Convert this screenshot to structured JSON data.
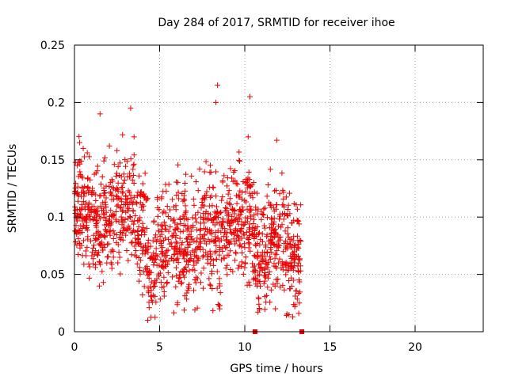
{
  "chart_data": {
    "type": "scatter",
    "title": "Day 284 of 2017, SRMTID for receiver ihoe",
    "xlabel": "GPS time / hours",
    "ylabel": "SRMTID / TECUs",
    "xlim": [
      0,
      24
    ],
    "ylim": [
      0,
      0.25
    ],
    "xticks": [
      0,
      5,
      10,
      15,
      20
    ],
    "yticks": [
      0,
      0.05,
      0.1,
      0.15,
      0.2,
      0.25
    ],
    "xtick_labels": [
      "0",
      "5",
      "10",
      "15",
      "20"
    ],
    "ytick_labels": [
      "0",
      "0.05",
      "0.1",
      "0.15",
      "0.2",
      "0.25"
    ],
    "grid": true,
    "marker": "+",
    "color": "#ee0000",
    "series": [
      {
        "name": "SRMTID",
        "envelope": {
          "x_range": [
            0,
            13.3
          ],
          "description": "dense cloud of points mostly between 0.03 and 0.16 TECU"
        },
        "notable_points": [
          {
            "x": 0.3,
            "y": 0.165
          },
          {
            "x": 1.5,
            "y": 0.19
          },
          {
            "x": 3.3,
            "y": 0.195
          },
          {
            "x": 3.5,
            "y": 0.17
          },
          {
            "x": 4.3,
            "y": 0.01
          },
          {
            "x": 8.4,
            "y": 0.215
          },
          {
            "x": 8.3,
            "y": 0.2
          },
          {
            "x": 10.3,
            "y": 0.205
          },
          {
            "x": 10.2,
            "y": 0.17
          },
          {
            "x": 11.8,
            "y": 0.02
          },
          {
            "x": 13.2,
            "y": 0.025
          }
        ],
        "zero_markers": [
          {
            "x": 10.6,
            "y": 0
          },
          {
            "x": 13.35,
            "y": 0
          }
        ]
      }
    ]
  }
}
